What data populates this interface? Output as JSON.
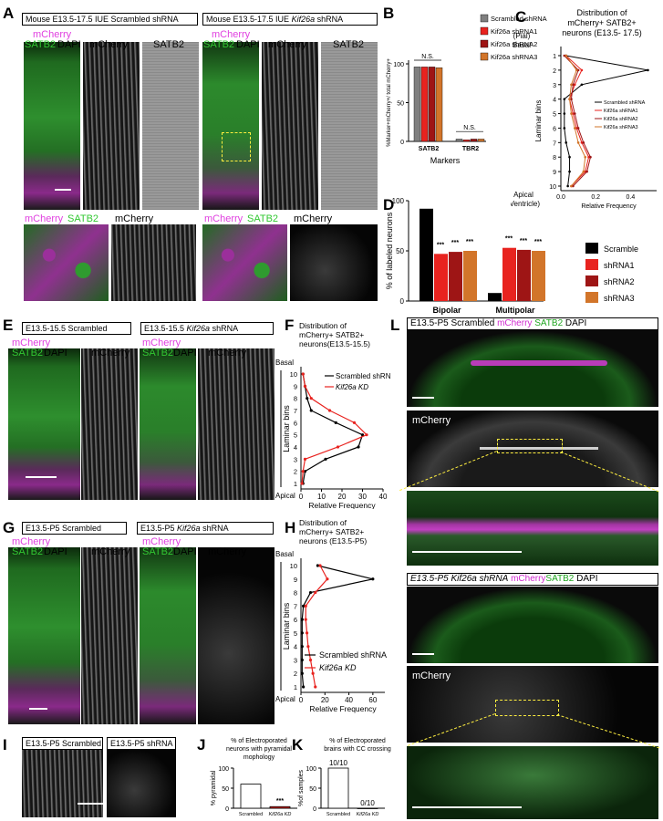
{
  "panels": {
    "A": {
      "label": "A",
      "header_left": "Mouse E13.5-17.5 IUE Scrambled shRNA",
      "header_right_pre": "Mouse E13.5-17.5 IUE ",
      "header_right_gene": "Kif26a",
      "header_right_post": " shRNA",
      "ch_mcherry": "mCherry",
      "ch_satb2": "SATB2",
      "ch_dapi": "DAPI"
    },
    "B": {
      "label": "B"
    },
    "C": {
      "label": "C"
    },
    "D": {
      "label": "D"
    },
    "E": {
      "label": "E",
      "header_left": "E13.5-15.5 Scrambled",
      "header_right_pre": "E13.5-15.5 ",
      "header_right_gene": "Kif26a",
      "header_right_post": " shRNA"
    },
    "F": {
      "label": "F"
    },
    "G": {
      "label": "G",
      "header_left": "E13.5-P5 Scrambled",
      "header_right_pre": "E13.5-P5 ",
      "header_right_gene": "Kif26a",
      "header_right_post": " shRNA"
    },
    "H": {
      "label": "H"
    },
    "I": {
      "label": "I",
      "header_left": "E13.5-P5 Scrambled",
      "header_right": "E13.5-P5 shRNA"
    },
    "J": {
      "label": "J"
    },
    "K": {
      "label": "K"
    },
    "L": {
      "label": "L",
      "header_top": "E13.5-P5 Scrambled",
      "header_bottom_pre": "E13.5-P5 ",
      "header_bottom_gene": "Kif26a shRNA"
    }
  },
  "chart_data": [
    {
      "panel": "B",
      "type": "bar",
      "categories": [
        "SATB2",
        "TBR2"
      ],
      "series": [
        {
          "name": "Scrambled shRNA",
          "values": [
            96,
            3
          ],
          "color": "#7f7f7f"
        },
        {
          "name": "Kif26a shRNA1",
          "values": [
            96,
            2
          ],
          "color": "#e8231f"
        },
        {
          "name": "Kif26a shRNA2",
          "values": [
            96,
            3
          ],
          "color": "#9e1515"
        },
        {
          "name": "Kif26a shRNA3",
          "values": [
            95,
            3
          ],
          "color": "#d2752a"
        }
      ],
      "ylabel": "%Marker+mCherry+/ total mCherry+",
      "xlabel": "Markers",
      "yticks": [
        0,
        50,
        100
      ],
      "ylim": [
        0,
        100
      ],
      "annotations": [
        "N.S.",
        "N.S."
      ]
    },
    {
      "panel": "C",
      "type": "line",
      "title": "Distribution of mCherry+ SATB2+ neurons (E13.5- 17.5)",
      "y_top_label": "(Pial) Basal",
      "y_bottom_label": "Apical (Ventricle)",
      "ylabel": "Laminar bins",
      "xlabel": "Relative Frequency",
      "bins": [
        1,
        2,
        3,
        4,
        5,
        6,
        7,
        8,
        9,
        10
      ],
      "xticks": [
        "0.0",
        "0.2",
        "0.4"
      ],
      "xlim": [
        0,
        0.55
      ],
      "series": [
        {
          "name": "Scrambled shRNA",
          "color": "#000000",
          "values": [
            0.03,
            0.5,
            0.12,
            0.02,
            0.02,
            0.02,
            0.03,
            0.05,
            0.05,
            0.04
          ]
        },
        {
          "name": "Kif26a shRNA1",
          "color": "#e8231f",
          "values": [
            0.03,
            0.12,
            0.08,
            0.05,
            0.07,
            0.09,
            0.12,
            0.16,
            0.14,
            0.06
          ]
        },
        {
          "name": "Kif26a shRNA2",
          "color": "#9e1515",
          "values": [
            0.02,
            0.1,
            0.07,
            0.06,
            0.08,
            0.1,
            0.13,
            0.17,
            0.15,
            0.07
          ]
        },
        {
          "name": "Kif26a shRNA3",
          "color": "#d2752a",
          "values": [
            0.03,
            0.09,
            0.06,
            0.05,
            0.06,
            0.08,
            0.1,
            0.14,
            0.13,
            0.06
          ]
        }
      ]
    },
    {
      "panel": "D",
      "type": "bar",
      "categories": [
        "Bipolar",
        "Multipolar"
      ],
      "series": [
        {
          "name": "Scramble",
          "values": [
            92,
            8
          ],
          "color": "#000000"
        },
        {
          "name": "shRNA1",
          "values": [
            47,
            53
          ],
          "color": "#e8231f"
        },
        {
          "name": "shRNA2",
          "values": [
            49,
            51
          ],
          "color": "#9e1515"
        },
        {
          "name": "shRNA3",
          "values": [
            50,
            50
          ],
          "color": "#d2752a"
        }
      ],
      "ylabel": "% of labeled neurons",
      "yticks": [
        0,
        50,
        100
      ],
      "ylim": [
        0,
        100
      ],
      "annotations": [
        "***"
      ]
    },
    {
      "panel": "F",
      "type": "line",
      "title": "Distribution of mCherry+ SATB2+ neurons(E13.5-15.5)",
      "y_top_label": "Basal",
      "y_bottom_label": "Apical",
      "ylabel": "Laminar bins",
      "xlabel": "Relative Frequency",
      "bins": [
        1,
        2,
        3,
        4,
        5,
        6,
        7,
        8,
        9,
        10
      ],
      "xticks": [
        0,
        10,
        20,
        30,
        40
      ],
      "xlim": [
        0,
        40
      ],
      "series": [
        {
          "name": "Scrambled shRNA",
          "color": "#000000",
          "values": [
            1,
            2,
            12,
            28,
            30,
            17,
            5,
            3,
            2,
            1
          ]
        },
        {
          "name": "Kif26a KD",
          "color": "#e8231f",
          "values": [
            0.5,
            1,
            2,
            18,
            32,
            26,
            14,
            5,
            2,
            1
          ]
        }
      ]
    },
    {
      "panel": "H",
      "type": "line",
      "title": "Distribution of mCherry+ SATB2+ neurons (E13.5-P5)",
      "y_top_label": "Basal",
      "y_bottom_label": "Apical",
      "ylabel": "Laminar bins",
      "xlabel": "Relative Frequency",
      "bins": [
        1,
        2,
        3,
        4,
        5,
        6,
        7,
        8,
        9,
        10
      ],
      "xticks": [
        0,
        20,
        40,
        60
      ],
      "xlim": [
        0,
        70
      ],
      "series": [
        {
          "name": "Scrambled shRNA",
          "color": "#000000",
          "values": [
            2,
            1,
            1,
            1,
            1,
            1,
            2,
            8,
            60,
            14
          ]
        },
        {
          "name": "Kif26a KD",
          "color": "#e8231f",
          "values": [
            12,
            10,
            8,
            6,
            5,
            4,
            4,
            12,
            22,
            16
          ]
        }
      ]
    },
    {
      "panel": "J",
      "type": "bar",
      "title": "% of Electroporated neurons with pyramidal mophology",
      "categories": [
        "Scrambled",
        "Kif26a KD"
      ],
      "values": [
        60,
        4
      ],
      "colors": [
        "#ffffff",
        "#e8231f"
      ],
      "ylabel": "% pyramidal",
      "yticks": [
        0,
        50,
        100
      ],
      "ylim": [
        0,
        100
      ],
      "annotations": [
        "***"
      ]
    },
    {
      "panel": "K",
      "type": "bar",
      "title": "% of Electroporated brains with CC crossing",
      "categories": [
        "Scrambled",
        "Kif26a KD"
      ],
      "values": [
        100,
        0
      ],
      "colors": [
        "#ffffff",
        "#ffffff"
      ],
      "ylabel": "%of samples",
      "yticks": [
        0,
        50,
        100
      ],
      "ylim": [
        0,
        100
      ],
      "data_labels": [
        "10/10",
        "0/10"
      ]
    }
  ]
}
